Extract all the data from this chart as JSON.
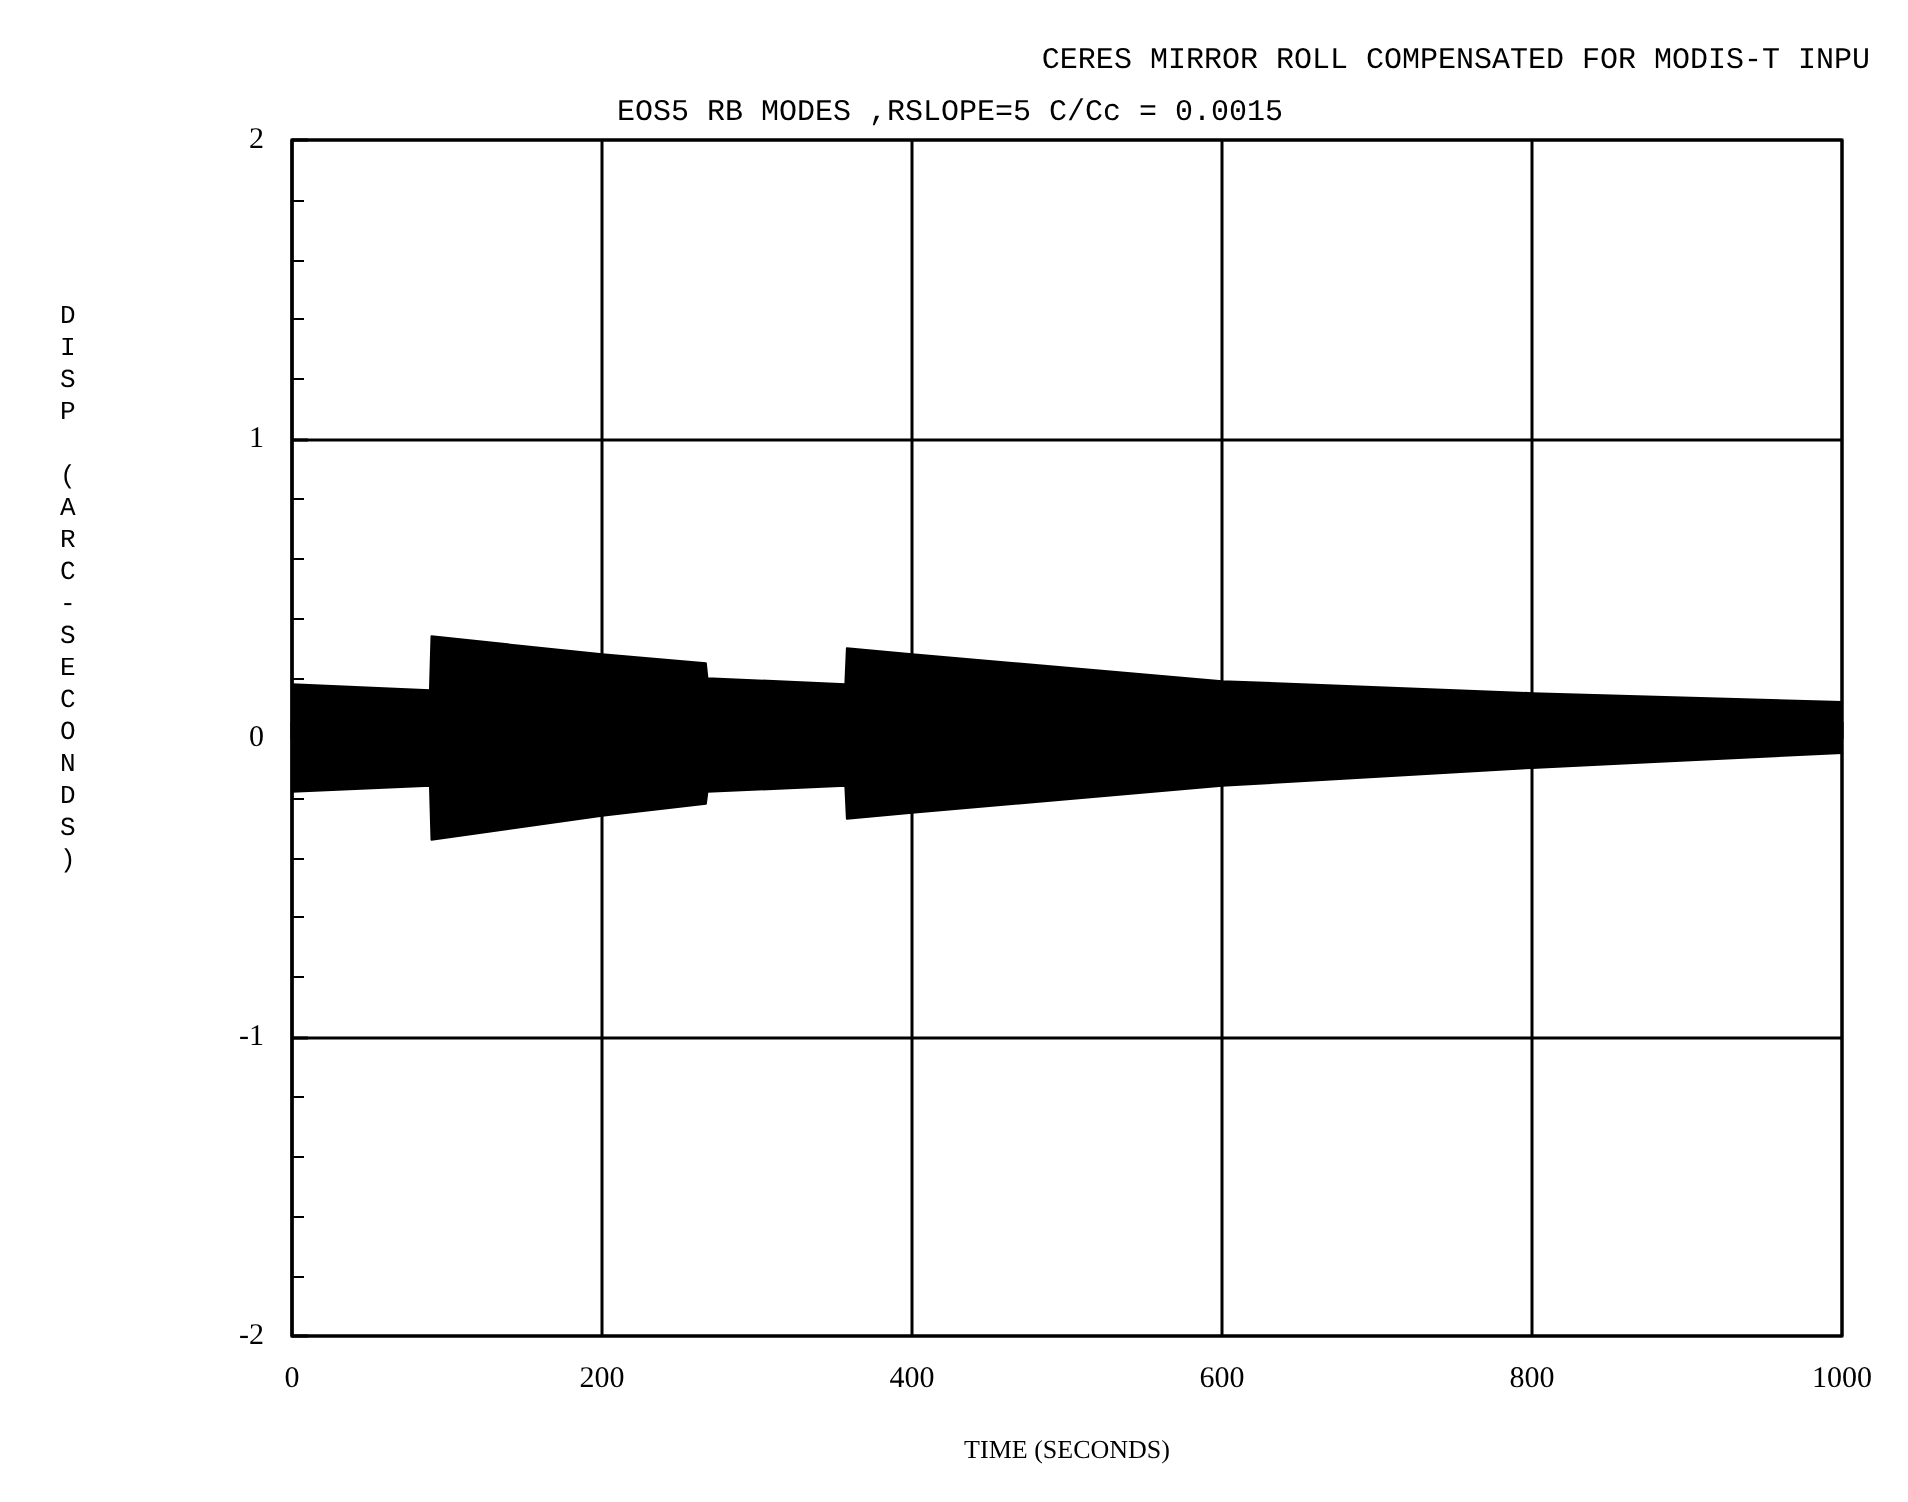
{
  "chart_data": {
    "type": "area",
    "title": "CERES MIRROR ROLL COMPENSATED FOR MODIS-T INPU",
    "subtitle": "EOS5 RB MODES ,RSLOPE=5 C/Cc = 0.0015",
    "xlabel": "TIME (SECONDS)",
    "ylabel": "DISP (ARC-SECONDS)",
    "x": [
      0,
      89,
      90,
      200,
      267,
      268,
      357,
      358,
      400,
      600,
      800,
      1000
    ],
    "series": [
      {
        "color": "#000000",
        "values": [
          0.18,
          0.16,
          0.34,
          0.28,
          0.25,
          0.2,
          0.18,
          0.3,
          0.28,
          0.19,
          0.15,
          0.12
        ]
      },
      {
        "color": "#000000",
        "values": [
          -0.18,
          -0.16,
          -0.34,
          -0.26,
          -0.22,
          -0.18,
          -0.16,
          -0.27,
          -0.25,
          -0.16,
          -0.1,
          -0.05
        ]
      }
    ],
    "xlim": [
      0,
      1000
    ],
    "xticks": [
      0,
      200,
      400,
      600,
      800,
      1000
    ],
    "ylim": [
      -2,
      2
    ],
    "yticks": [
      -2,
      -1,
      0,
      1,
      2
    ],
    "grid": true,
    "marker": "none"
  }
}
